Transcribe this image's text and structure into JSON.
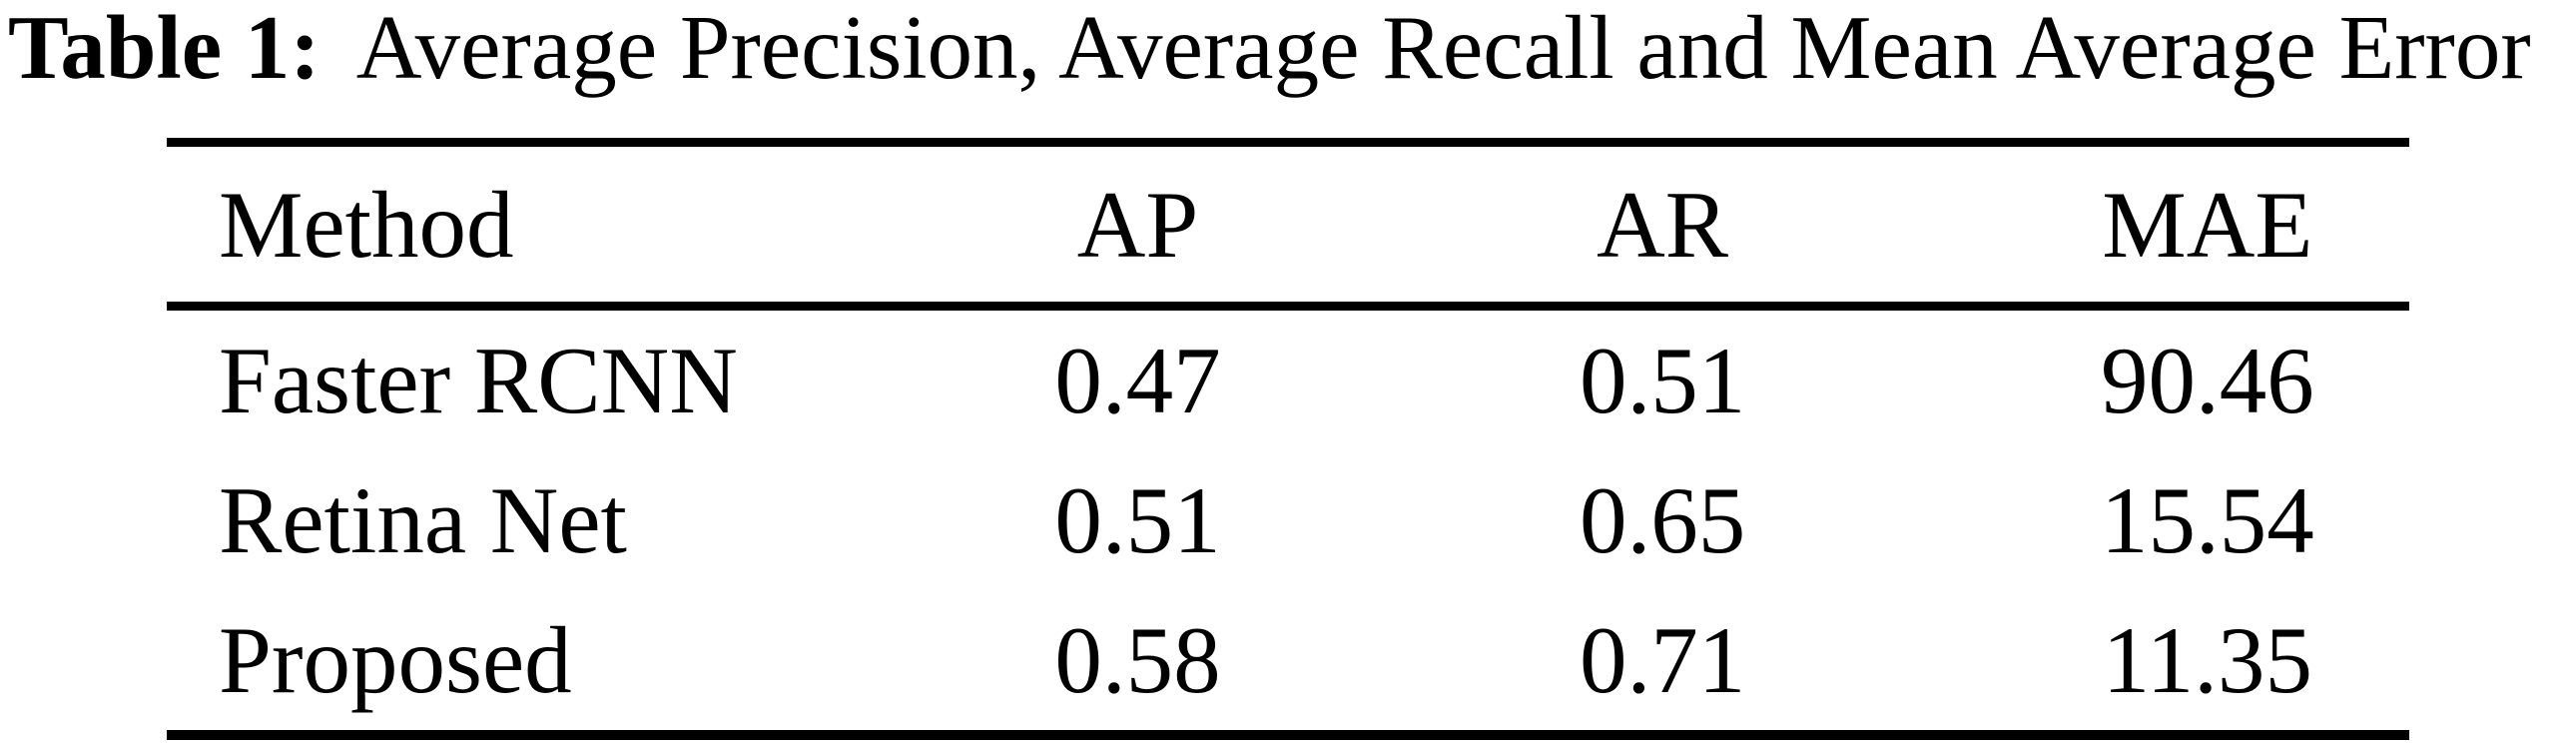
{
  "caption": {
    "label": "Table 1:",
    "text": "Average Precision, Average Recall and Mean Average Error"
  },
  "table": {
    "columns": [
      "Method",
      "AP",
      "AR",
      "MAE"
    ],
    "rows": [
      {
        "method": "Faster RCNN",
        "ap": "0.47",
        "ar": "0.51",
        "mae": "90.46"
      },
      {
        "method": "Retina Net",
        "ap": "0.51",
        "ar": "0.65",
        "mae": "15.54"
      },
      {
        "method": "Proposed",
        "ap": "0.58",
        "ar": "0.71",
        "mae": "11.35"
      }
    ]
  },
  "colors": {
    "text": "#000000",
    "background": "#ffffff",
    "rule": "#000000"
  },
  "chart_data": {
    "type": "table",
    "title": "Table 1: Average Precision, Average Recall and Mean Average Error",
    "columns": [
      "Method",
      "AP",
      "AR",
      "MAE"
    ],
    "rows": [
      [
        "Faster RCNN",
        0.47,
        0.51,
        90.46
      ],
      [
        "Retina Net",
        0.51,
        0.65,
        15.54
      ],
      [
        "Proposed",
        0.58,
        0.71,
        11.35
      ]
    ]
  }
}
